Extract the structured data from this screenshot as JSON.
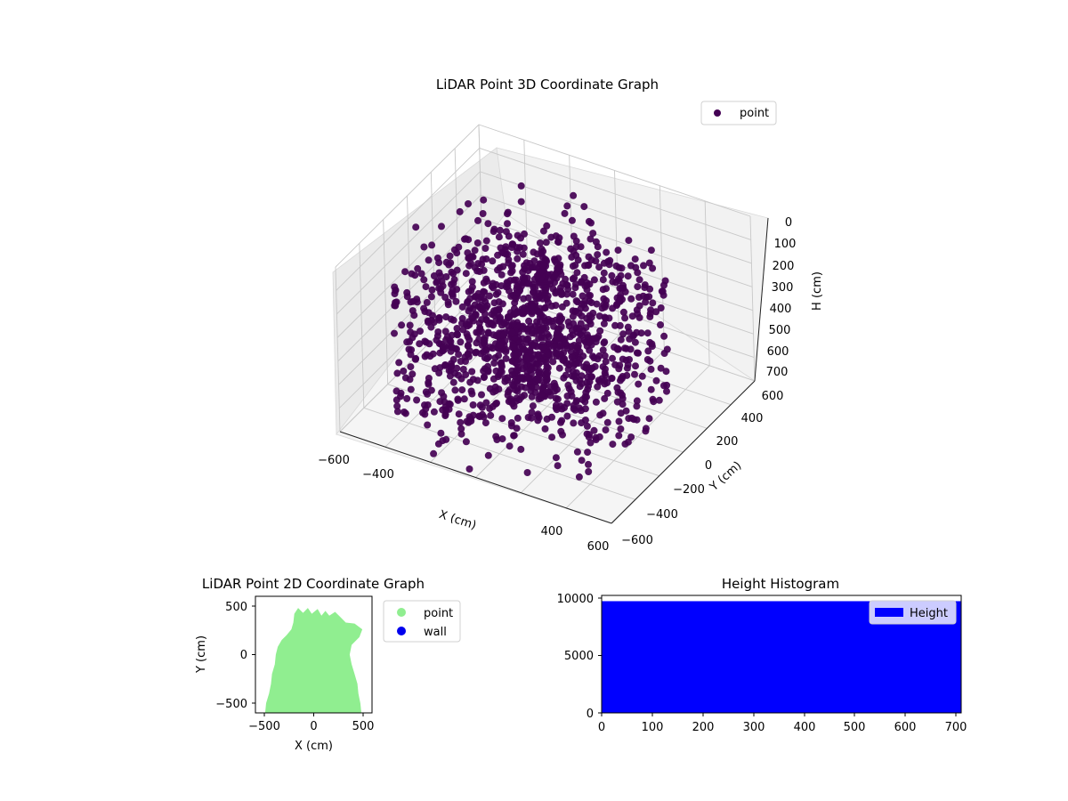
{
  "chart_data": [
    {
      "type": "scatter",
      "projection": "3d",
      "title": "LiDAR Point 3D Coordinate Graph",
      "xlabel": "X (cm)",
      "ylabel": "Y (cm)",
      "zlabel": "H (cm)",
      "xlim": [
        -600,
        600
      ],
      "ylim": [
        -600,
        600
      ],
      "zlim": [
        700,
        0
      ],
      "z_inverted": true,
      "x_ticks": [
        "−600",
        "−400",
        "−200",
        "0",
        "200",
        "400",
        "600"
      ],
      "y_ticks": [
        "−600",
        "−400",
        "−200",
        "0",
        "200",
        "400",
        "600"
      ],
      "z_ticks": [
        "0",
        "100",
        "200",
        "300",
        "400",
        "500",
        "600",
        "700"
      ],
      "grid": true,
      "legend": {
        "placement": "upper right",
        "entries": [
          "point"
        ]
      },
      "series": [
        {
          "name": "point",
          "color": "#440154",
          "description": "dense radial point cloud of roughly 9600 points, spread over about x -500..500, y -600..500, h 0..700"
        }
      ]
    },
    {
      "type": "scatter",
      "title": "LiDAR Point 2D Coordinate Graph",
      "xlabel": "X (cm)",
      "ylabel": "Y (cm)",
      "xlim": [
        -600,
        600
      ],
      "ylim": [
        -600,
        600
      ],
      "x_ticks": [
        "−500",
        "0",
        "500"
      ],
      "y_ticks": [
        "−500",
        "0",
        "500"
      ],
      "grid": false,
      "legend": {
        "placement": "outside right",
        "entries": [
          "point",
          "wall"
        ]
      },
      "series": [
        {
          "name": "point",
          "color": "#90ee90",
          "outline_xy": [
            [
              -500,
              -600
            ],
            [
              -490,
              -500
            ],
            [
              -460,
              -400
            ],
            [
              -440,
              -300
            ],
            [
              -430,
              -200
            ],
            [
              -400,
              -100
            ],
            [
              -390,
              0
            ],
            [
              -370,
              80
            ],
            [
              -330,
              150
            ],
            [
              -280,
              200
            ],
            [
              -230,
              260
            ],
            [
              -210,
              330
            ],
            [
              -200,
              420
            ],
            [
              -160,
              480
            ],
            [
              -110,
              430
            ],
            [
              -60,
              480
            ],
            [
              -20,
              420
            ],
            [
              40,
              470
            ],
            [
              80,
              400
            ],
            [
              120,
              450
            ],
            [
              160,
              400
            ],
            [
              220,
              440
            ],
            [
              280,
              380
            ],
            [
              330,
              330
            ],
            [
              420,
              320
            ],
            [
              500,
              260
            ],
            [
              470,
              180
            ],
            [
              390,
              100
            ],
            [
              370,
              0
            ],
            [
              390,
              -100
            ],
            [
              420,
              -200
            ],
            [
              450,
              -300
            ],
            [
              460,
              -400
            ],
            [
              480,
              -500
            ],
            [
              490,
              -600
            ]
          ]
        },
        {
          "name": "wall",
          "color": "#0000ee",
          "points": []
        }
      ]
    },
    {
      "type": "bar",
      "subtype": "histogram",
      "title": "Height Histogram",
      "xlim": [
        0,
        710
      ],
      "ylim": [
        0,
        10200
      ],
      "x_ticks": [
        "0",
        "100",
        "200",
        "300",
        "400",
        "500",
        "600",
        "700"
      ],
      "y_ticks": [
        "0",
        "5000",
        "10000"
      ],
      "legend": {
        "placement": "upper right",
        "entries": [
          "Height"
        ]
      },
      "series": [
        {
          "name": "Height",
          "color": "#0000ff",
          "bins": [
            {
              "range": [
                0,
                710
              ],
              "count": 9700
            }
          ]
        }
      ]
    }
  ]
}
